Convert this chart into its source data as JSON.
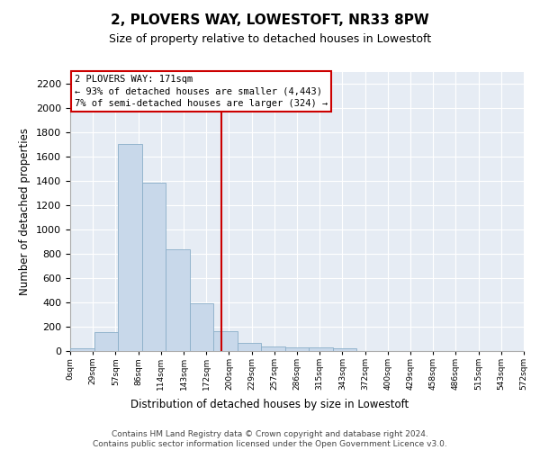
{
  "title": "2, PLOVERS WAY, LOWESTOFT, NR33 8PW",
  "subtitle": "Size of property relative to detached houses in Lowestoft",
  "xlabel": "Distribution of detached houses by size in Lowestoft",
  "ylabel": "Number of detached properties",
  "bar_values": [
    20,
    155,
    1710,
    1390,
    840,
    390,
    165,
    65,
    40,
    30,
    30,
    20,
    0,
    0,
    0,
    0,
    0,
    0,
    0
  ],
  "tick_labels": [
    "0sqm",
    "29sqm",
    "57sqm",
    "86sqm",
    "114sqm",
    "143sqm",
    "172sqm",
    "200sqm",
    "229sqm",
    "257sqm",
    "286sqm",
    "315sqm",
    "343sqm",
    "372sqm",
    "400sqm",
    "429sqm",
    "458sqm",
    "486sqm",
    "515sqm",
    "543sqm",
    "572sqm"
  ],
  "bar_color": "#c8d8ea",
  "bar_edgecolor": "#8aaec8",
  "vline_color": "#cc0000",
  "vline_position": 5.82,
  "annotation_text": "2 PLOVERS WAY: 171sqm\n← 93% of detached houses are smaller (4,443)\n7% of semi-detached houses are larger (324) →",
  "ylim_max": 2300,
  "yticks": [
    0,
    200,
    400,
    600,
    800,
    1000,
    1200,
    1400,
    1600,
    1800,
    2000,
    2200
  ],
  "bg_color": "#e6ecf4",
  "title_fontsize": 11,
  "subtitle_fontsize": 9,
  "ylabel_fontsize": 8.5,
  "xlabel_fontsize": 8.5,
  "footer": "Contains HM Land Registry data © Crown copyright and database right 2024.\nContains public sector information licensed under the Open Government Licence v3.0."
}
